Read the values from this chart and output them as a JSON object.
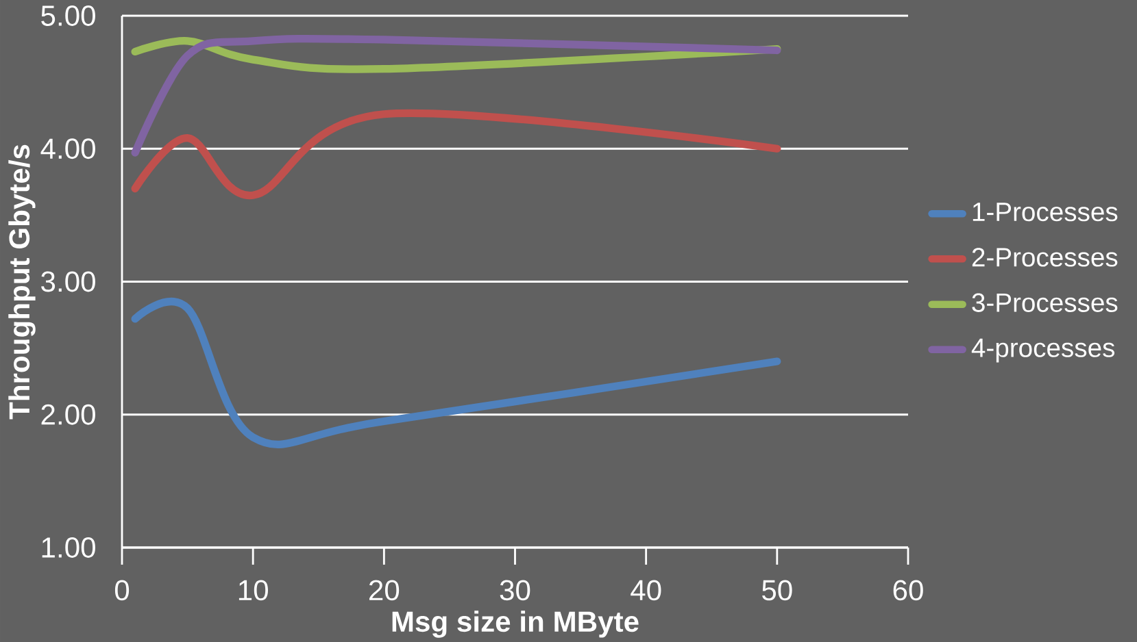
{
  "chart_data": {
    "type": "line",
    "xlabel": "Msg size in MByte",
    "ylabel": "Throughput  Gbyte/s",
    "x": [
      1,
      5,
      10,
      20,
      50
    ],
    "series": [
      {
        "name": "1-Processes",
        "color": "#4f81bd",
        "values": [
          2.72,
          2.8,
          1.83,
          1.95,
          2.4
        ]
      },
      {
        "name": "2-Processes",
        "color": "#c0504d",
        "values": [
          3.7,
          4.08,
          3.65,
          4.26,
          4.0
        ]
      },
      {
        "name": "3-Processes",
        "color": "#9bbb59",
        "values": [
          4.73,
          4.81,
          4.67,
          4.6,
          4.75
        ]
      },
      {
        "name": "4-processes",
        "color": "#8064a2",
        "values": [
          3.97,
          4.7,
          4.81,
          4.82,
          4.74
        ]
      }
    ],
    "xlim": [
      0,
      60
    ],
    "xticks": [
      0,
      10,
      20,
      30,
      40,
      50,
      60
    ],
    "ylim": [
      1,
      5
    ],
    "yticks": [
      {
        "value": 1,
        "label": "1.00"
      },
      {
        "value": 2,
        "label": "2.00"
      },
      {
        "value": 3,
        "label": "3.00"
      },
      {
        "value": 4,
        "label": "4.00"
      },
      {
        "value": 5,
        "label": "5.00"
      }
    ],
    "grid": "y",
    "legend": "right"
  }
}
